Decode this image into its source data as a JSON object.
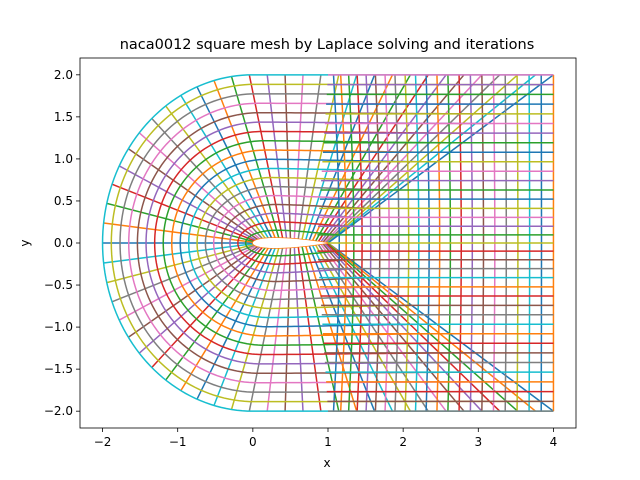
{
  "chart_data": {
    "type": "line",
    "title": "naca0012 square mesh by Laplace solving and iterations",
    "xlabel": "x",
    "ylabel": "y",
    "xlim": [
      -2.3,
      4.3
    ],
    "ylim": [
      -2.2,
      2.2
    ],
    "x_ticks": [
      "−2",
      "−1",
      "0",
      "1",
      "2",
      "3",
      "4"
    ],
    "y_ticks": [
      "−2.0",
      "−1.5",
      "−1.0",
      "−0.5",
      "0.0",
      "0.5",
      "1.0",
      "1.5",
      "2.0"
    ],
    "x_tick_values": [
      -2,
      -1,
      0,
      1,
      2,
      3,
      4
    ],
    "y_tick_values": [
      -2.0,
      -1.5,
      -1.0,
      -0.5,
      0.0,
      0.5,
      1.0,
      1.5,
      2.0
    ],
    "grid": false,
    "mesh": {
      "airfoil": "naca0012",
      "chord": 1.0,
      "thickness": 0.12,
      "inner_boundary": "airfoil surface",
      "outer_boundary": "semicircle of radius 2 centered at (0,0) joined to straight lines y=±2 extending to x=4, closed by x=4",
      "outer_radius": 2.0,
      "x_max": 4.0,
      "wrap_lines": 60,
      "radial_lines": 18
    },
    "series_colors": [
      "#1f77b4",
      "#ff7f0e",
      "#2ca02c",
      "#d62728",
      "#9467bd",
      "#8c564b",
      "#e377c2",
      "#7f7f7f",
      "#bcbd22",
      "#17becf"
    ]
  }
}
